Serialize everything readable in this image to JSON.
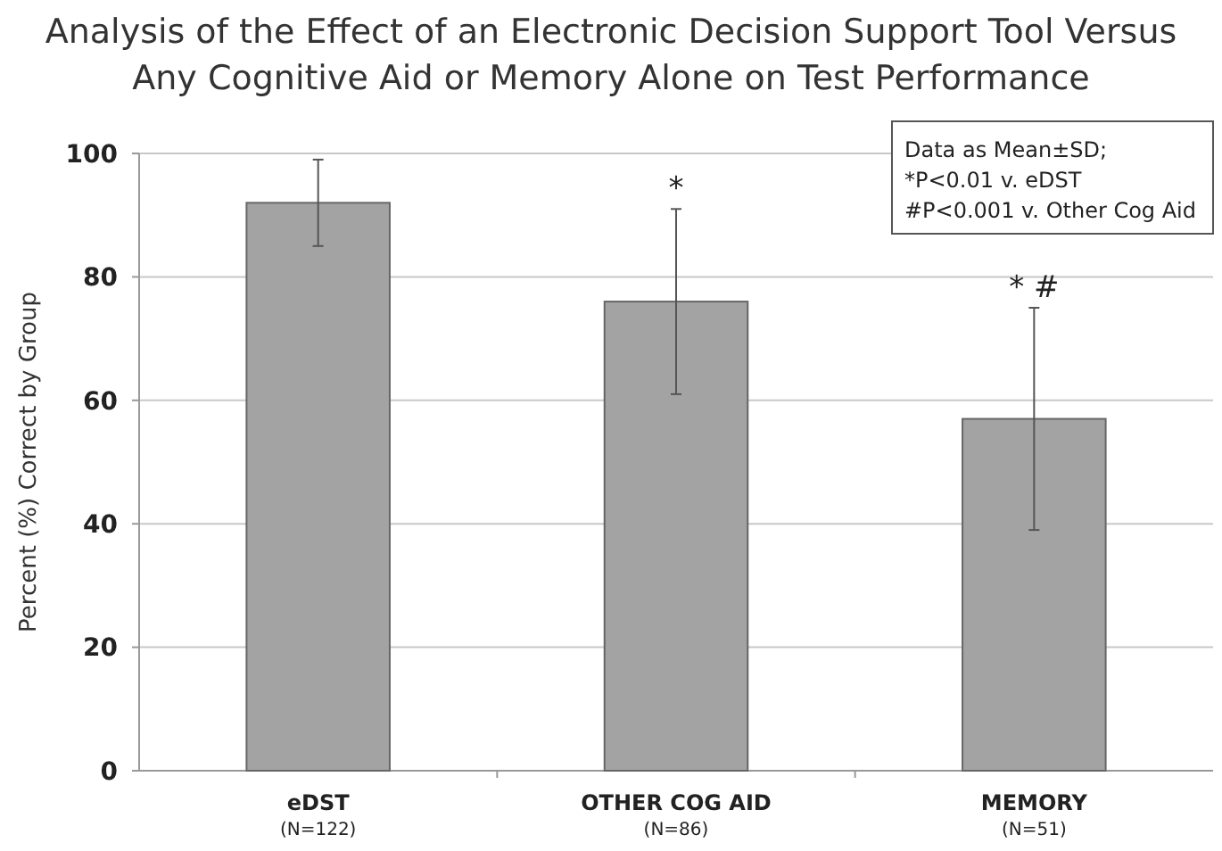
{
  "chart_data": {
    "type": "bar",
    "title": "Analysis of the Effect of an Electronic Decision Support Tool Versus\nAny Cognitive Aid or Memory Alone on Test Performance",
    "ylabel": "Percent (%) Correct by Group",
    "categories": [
      "eDST\n(N=122)",
      "OTHER COG AID\n(N=86)",
      "MEMORY\n(N=51)"
    ],
    "values": [
      92,
      76,
      57
    ],
    "errors": [
      7,
      15,
      18
    ],
    "color": "#a3a3a3",
    "ylim": [
      0,
      100
    ],
    "yticks": [
      0,
      20,
      40,
      60,
      80,
      100
    ],
    "grid": "y",
    "annotations": [
      "Data as Mean±SD;\n*P<0.01 v. eDST\n#P<0.001 v. Other Cog Aid",
      "*",
      "* #"
    ]
  }
}
